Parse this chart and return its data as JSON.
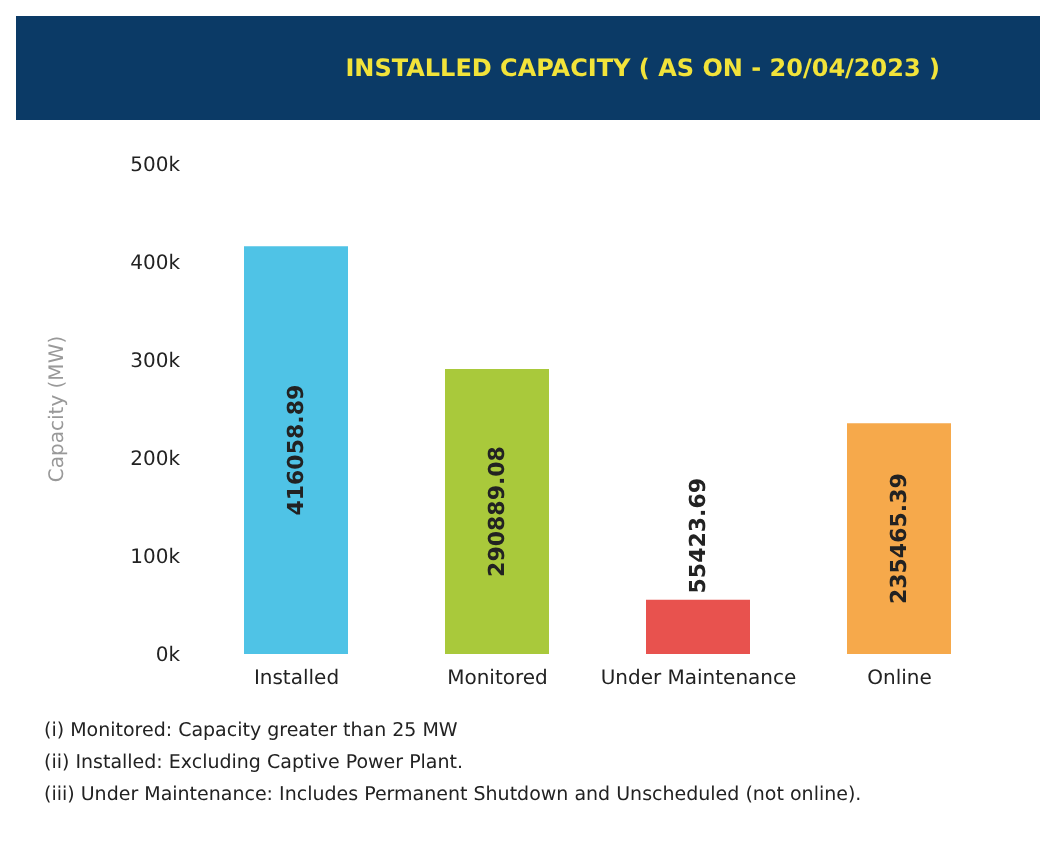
{
  "chart_data": {
    "type": "bar",
    "title": "INSTALLED CAPACITY ( AS ON - 20/04/2023 )",
    "ylabel": "Capacity (MW)",
    "categories": [
      "Installed",
      "Monitored",
      "Under Maintenance",
      "Online"
    ],
    "values": [
      416058.89,
      290889.08,
      55423.69,
      235465.39
    ],
    "colors": [
      "#4fc3e6",
      "#a9c93b",
      "#e8524e",
      "#f6a94b"
    ],
    "ylim": [
      0,
      500000
    ],
    "yticks": [
      {
        "value": 0,
        "label": "0k"
      },
      {
        "value": 100000,
        "label": "100k"
      },
      {
        "value": 200000,
        "label": "200k"
      },
      {
        "value": 300000,
        "label": "300k"
      },
      {
        "value": 400000,
        "label": "400k"
      },
      {
        "value": 500000,
        "label": "500k"
      }
    ],
    "data_labels": true,
    "grid": false,
    "annotations": [
      "(i) Monitored: Capacity greater than 25 MW",
      "(ii) Installed: Excluding Captive Power Plant.",
      "(iii) Under Maintenance: Includes Permanent Shutdown and Unscheduled (not online)."
    ]
  }
}
